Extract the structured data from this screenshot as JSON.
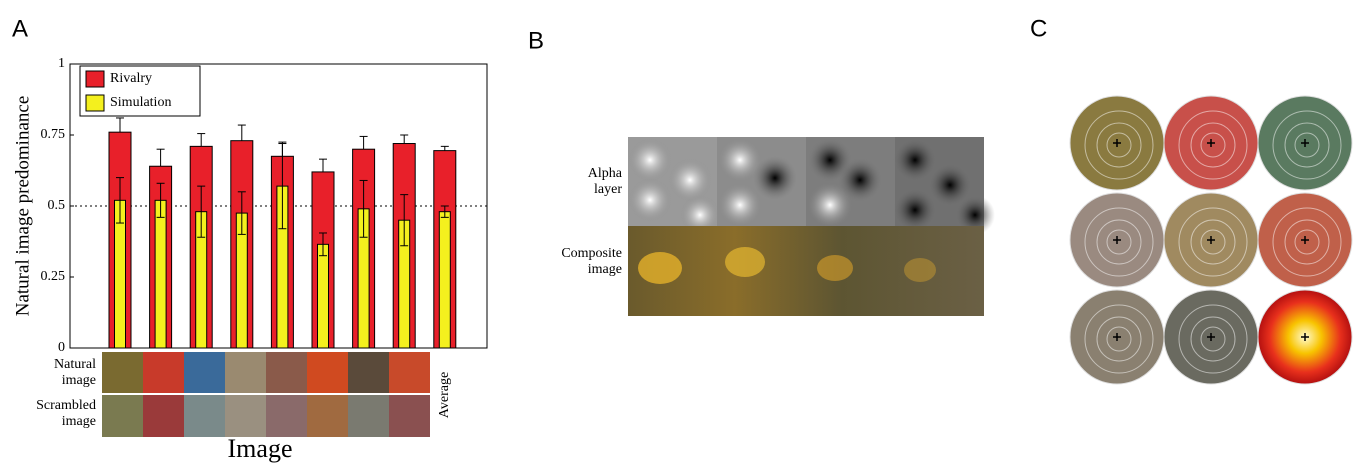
{
  "panels": {
    "a": "A",
    "b": "B",
    "c": "C"
  },
  "chart_data": {
    "type": "bar",
    "ylabel": "Natural image predominance",
    "xlabel": "Image",
    "categories": [
      null,
      null,
      null,
      null,
      null,
      null,
      null,
      null,
      "Average"
    ],
    "series": [
      {
        "name": "Rivalry",
        "color": "#e8202a",
        "values": [
          0.76,
          0.64,
          0.71,
          0.73,
          0.675,
          0.62,
          0.7,
          0.72,
          0.695
        ],
        "errors": [
          0.05,
          0.06,
          0.045,
          0.055,
          0.05,
          0.045,
          0.045,
          0.03,
          0.015
        ]
      },
      {
        "name": "Simulation",
        "color": "#f4f01e",
        "values": [
          0.52,
          0.52,
          0.48,
          0.475,
          0.57,
          0.365,
          0.49,
          0.45,
          0.48
        ],
        "errors": [
          0.08,
          0.06,
          0.09,
          0.075,
          0.15,
          0.04,
          0.1,
          0.09,
          0.02
        ]
      }
    ],
    "ylim": [
      0,
      1
    ],
    "yticks": [
      0,
      0.25,
      0.5,
      0.75,
      1
    ],
    "reference_line": 0.5,
    "legend": "upper left"
  },
  "row_labels": [
    "Natural image",
    "Scrambled image"
  ],
  "panel_b": {
    "rows": [
      "Alpha layer",
      "Composite image"
    ]
  }
}
